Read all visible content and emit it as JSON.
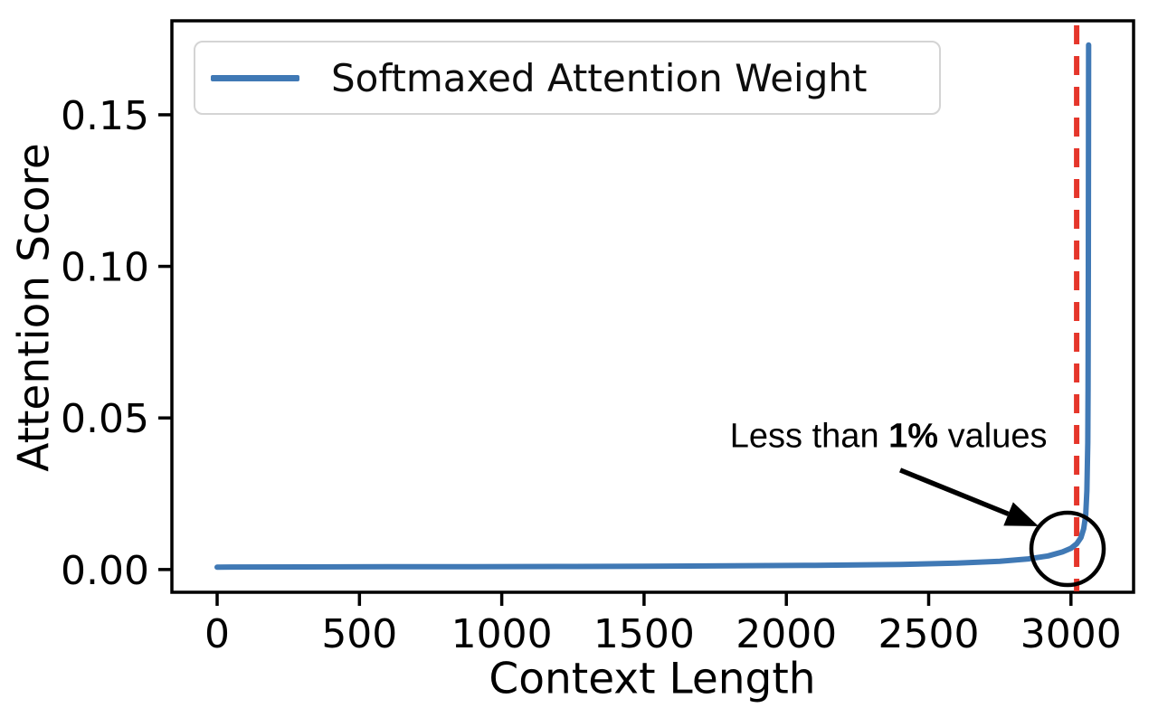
{
  "figure": {
    "background": "#ffffff",
    "frame_color": "#000000"
  },
  "chart_data": {
    "type": "line",
    "title": "",
    "xlabel": "Context Length",
    "ylabel": "Attention Score",
    "x_ticks": [
      0,
      500,
      1000,
      1500,
      2000,
      2500,
      3000
    ],
    "y_ticks": [
      0.0,
      0.05,
      0.1,
      0.15
    ],
    "y_tick_labels": [
      "0.00",
      "0.05",
      "0.10",
      "0.15"
    ],
    "xlim": [
      -159,
      3220
    ],
    "ylim": [
      -0.0075,
      0.181
    ],
    "grid": false,
    "legend_position": "upper left",
    "series": [
      {
        "name": "Softmaxed Attention Weight",
        "color": "#4079B5",
        "points": [
          [
            0,
            0.0008
          ],
          [
            300,
            0.00085
          ],
          [
            600,
            0.0009
          ],
          [
            900,
            0.00095
          ],
          [
            1200,
            0.001
          ],
          [
            1500,
            0.0011
          ],
          [
            1800,
            0.0012
          ],
          [
            2100,
            0.0014
          ],
          [
            2400,
            0.0017
          ],
          [
            2600,
            0.0021
          ],
          [
            2750,
            0.0027
          ],
          [
            2850,
            0.0035
          ],
          [
            2920,
            0.0045
          ],
          [
            2970,
            0.0058
          ],
          [
            3000,
            0.007
          ],
          [
            3020,
            0.0085
          ],
          [
            3035,
            0.0105
          ],
          [
            3045,
            0.0135
          ],
          [
            3052,
            0.018
          ],
          [
            3056,
            0.026
          ],
          [
            3059,
            0.042
          ],
          [
            3060,
            0.06
          ],
          [
            3061,
            0.1
          ],
          [
            3062,
            0.173
          ]
        ]
      }
    ],
    "vline": {
      "x": 3020,
      "color": "#E5362B",
      "style": "dashed"
    },
    "annotations": {
      "label": {
        "prefix": "Less than ",
        "bold": "1%",
        "suffix": " values",
        "x": 2359,
        "y": 0.0438
      },
      "arrow": {
        "from_x": 2400,
        "from_y": 0.0328,
        "to_x": 2886,
        "to_y": 0.0143,
        "color": "#000000"
      },
      "circle": {
        "x": 2988,
        "y": 0.0068,
        "radius_px": 40,
        "color": "#000000"
      }
    }
  }
}
